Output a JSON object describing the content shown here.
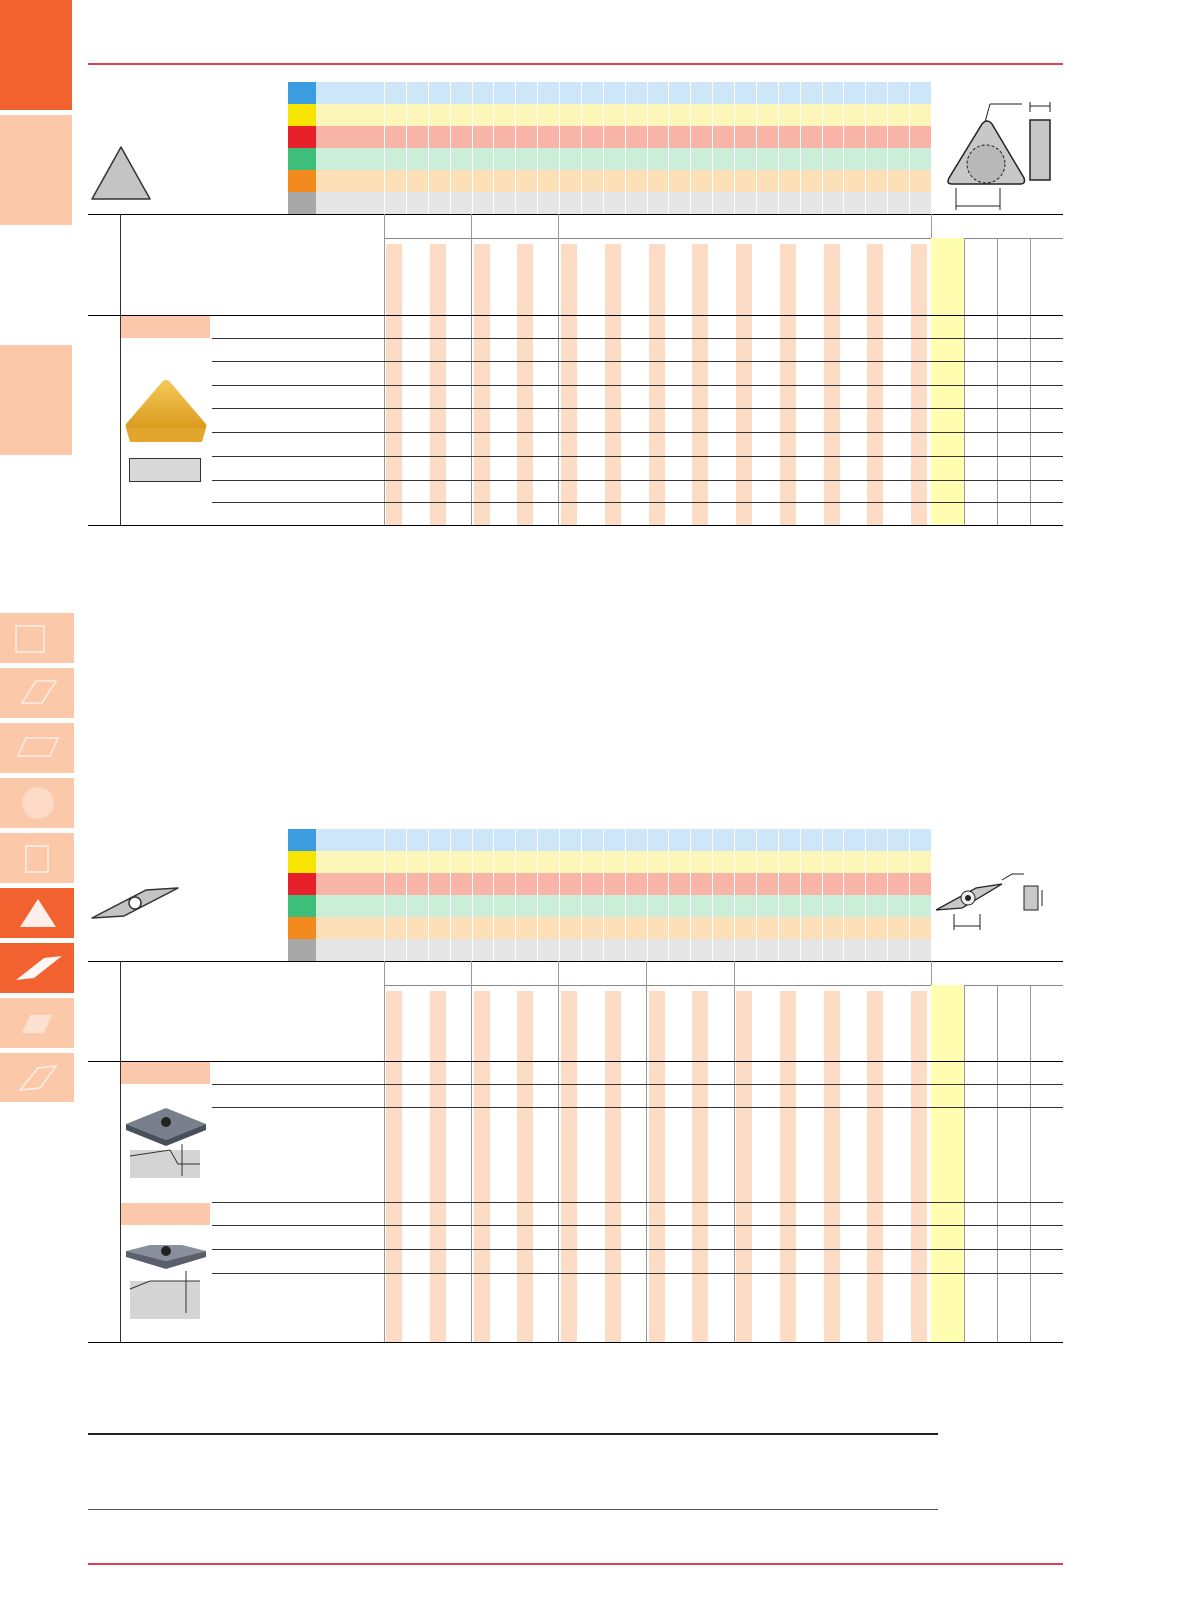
{
  "colors": {
    "accent": "#f26130",
    "tab_light": "#fcc8aa",
    "rule": "#e0404f",
    "stripe": "#fcdcc4",
    "highlight": "#fffdb0",
    "iso_P": "#3b9de0",
    "iso_M": "#f7e400",
    "iso_K": "#e8202a",
    "iso_N": "#3dbf7a",
    "iso_S": "#f28a1e",
    "iso_H": "#a8a8a8"
  },
  "side_tabs": [
    {
      "shape": "square-icon",
      "state": "inactive"
    },
    {
      "shape": "parallelogram-icon",
      "state": "inactive"
    },
    {
      "shape": "rhombus-80-icon",
      "state": "inactive"
    },
    {
      "shape": "circle-icon",
      "state": "inactive"
    },
    {
      "shape": "square-small-icon",
      "state": "inactive"
    },
    {
      "shape": "triangle-icon",
      "state": "active"
    },
    {
      "shape": "rhombus-35-icon",
      "state": "active"
    },
    {
      "shape": "rhombus-55-icon",
      "state": "inactive"
    },
    {
      "shape": "trigon-icon",
      "state": "inactive"
    }
  ],
  "tables": [
    {
      "shape_icon": "triangle-insert-icon",
      "dimension_diagram": "triangle-dimension-diagram-icon",
      "product_image": "triangle-insert-gold-icon",
      "rows": 9
    },
    {
      "shape_icon": "rhombus-35-insert-icon",
      "dimension_diagram": "rhombus-dimension-diagram-icon",
      "product_image": "rhombus-insert-gray-icon",
      "rows": 8
    }
  ]
}
